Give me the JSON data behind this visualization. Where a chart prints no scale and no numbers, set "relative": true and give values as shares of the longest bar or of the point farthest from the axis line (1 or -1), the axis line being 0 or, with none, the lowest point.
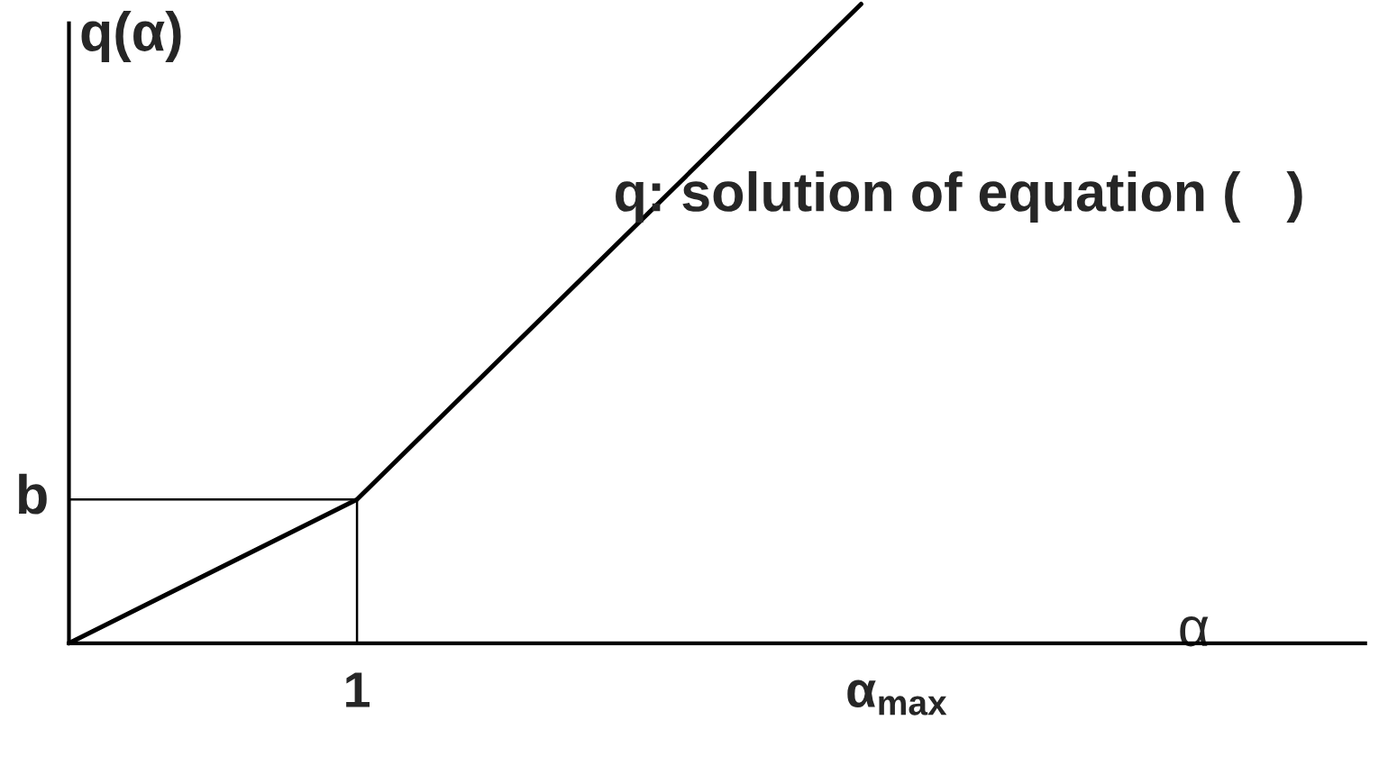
{
  "chart_data": {
    "type": "line",
    "relative": true,
    "xlabel": "α",
    "ylabel": "q(α)",
    "categories": [
      null,
      null,
      null,
      null,
      null,
      null,
      null,
      null,
      "1",
      null,
      null,
      null,
      null,
      null,
      null,
      null,
      null,
      null,
      null,
      null,
      null,
      null,
      null,
      "α$_{max}$",
      null,
      null,
      null,
      null,
      null,
      null,
      null,
      null,
      null,
      null,
      null,
      null,
      null
    ],
    "series": [
      {
        "color": "#000000",
        "values": [
          0,
          null,
          null,
          null,
          null,
          null,
          null,
          null,
          0.225,
          null,
          null,
          null,
          null,
          null,
          null,
          null,
          null,
          null,
          null,
          null,
          null,
          null,
          1,
          null,
          null,
          null,
          null,
          null,
          null,
          null,
          null,
          null,
          null,
          null,
          null,
          null,
          null
        ]
      },
      {
        "type": "step",
        "color": "#000000",
        "values": [
          0.225,
          null,
          null,
          null,
          null,
          null,
          null,
          null,
          0,
          null,
          null,
          null,
          null,
          null,
          null,
          null,
          null,
          null,
          null,
          null,
          null,
          null,
          null,
          null,
          null,
          null,
          null,
          null,
          null,
          null,
          null,
          null,
          null,
          null,
          null,
          null,
          null
        ]
      }
    ],
    "annotations": [
      "b",
      "q: solution of equation (   )"
    ],
    "grid": false,
    "legend": false,
    "marker": "none",
    "line_style": "solid"
  }
}
